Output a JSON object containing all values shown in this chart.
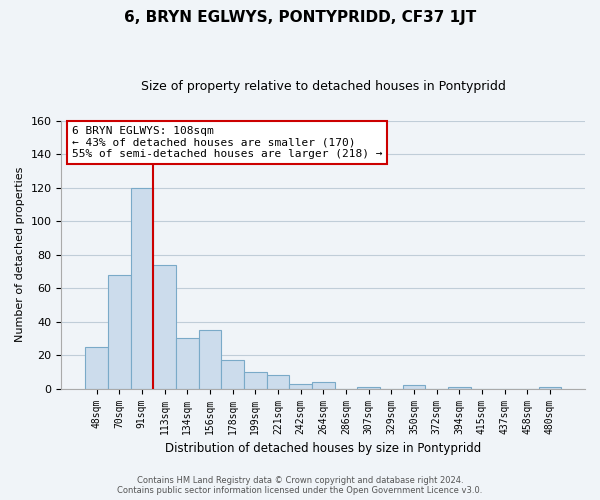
{
  "title": "6, BRYN EGLWYS, PONTYPRIDD, CF37 1JT",
  "subtitle": "Size of property relative to detached houses in Pontypridd",
  "xlabel": "Distribution of detached houses by size in Pontypridd",
  "ylabel": "Number of detached properties",
  "bar_labels": [
    "48sqm",
    "70sqm",
    "91sqm",
    "113sqm",
    "134sqm",
    "156sqm",
    "178sqm",
    "199sqm",
    "221sqm",
    "242sqm",
    "264sqm",
    "286sqm",
    "307sqm",
    "329sqm",
    "350sqm",
    "372sqm",
    "394sqm",
    "415sqm",
    "437sqm",
    "458sqm",
    "480sqm"
  ],
  "bar_heights": [
    25,
    68,
    120,
    74,
    30,
    35,
    17,
    10,
    8,
    3,
    4,
    0,
    1,
    0,
    2,
    0,
    1,
    0,
    0,
    0,
    1
  ],
  "bar_color": "#ccdcec",
  "bar_edge_color": "#7aaac8",
  "vline_color": "#cc0000",
  "vline_x": 2.5,
  "annotation_title": "6 BRYN EGLWYS: 108sqm",
  "annotation_line1": "← 43% of detached houses are smaller (170)",
  "annotation_line2": "55% of semi-detached houses are larger (218) →",
  "annotation_box_facecolor": "#ffffff",
  "annotation_box_edgecolor": "#cc0000",
  "ylim": [
    0,
    160
  ],
  "yticks": [
    0,
    20,
    40,
    60,
    80,
    100,
    120,
    140,
    160
  ],
  "footer_line1": "Contains HM Land Registry data © Crown copyright and database right 2024.",
  "footer_line2": "Contains public sector information licensed under the Open Government Licence v3.0.",
  "bg_color": "#f0f4f8",
  "plot_bg_color": "#f0f4f8",
  "grid_color": "#c0cdd8"
}
